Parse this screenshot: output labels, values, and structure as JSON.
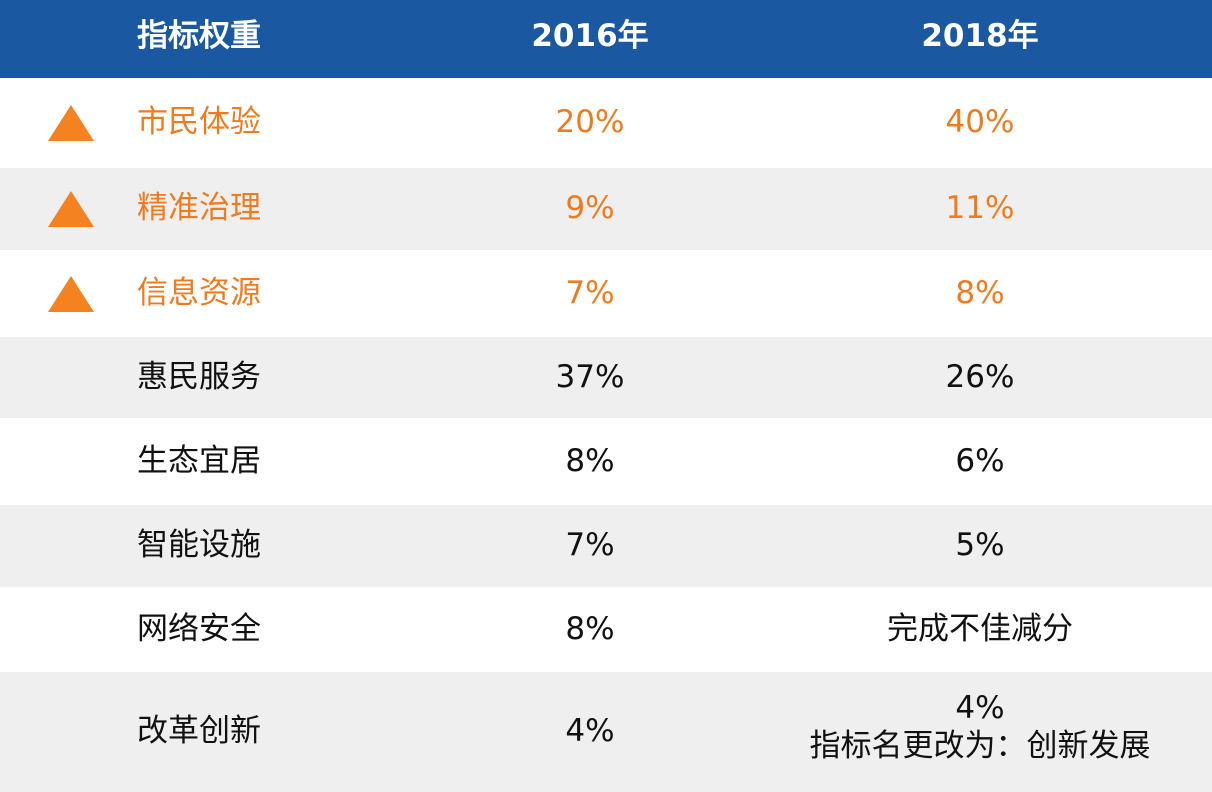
{
  "table": {
    "header": [
      "指标权重",
      "2016年",
      "2018年"
    ],
    "rows": [
      {
        "cells": [
          "市民体验",
          "20%",
          "40%"
        ],
        "highlight": true
      },
      {
        "cells": [
          "精准治理",
          "9%",
          "11%"
        ],
        "highlight": true
      },
      {
        "cells": [
          "信息资源",
          "7%",
          "8%"
        ],
        "highlight": true
      },
      {
        "cells": [
          "惠民服务",
          "37%",
          "26%"
        ],
        "highlight": false
      },
      {
        "cells": [
          "生态宜居",
          "8%",
          "6%"
        ],
        "highlight": false
      },
      {
        "cells": [
          "智能设施",
          "7%",
          "5%"
        ],
        "highlight": false
      },
      {
        "cells": [
          "网络安全",
          "8%",
          "完成不佳减分"
        ],
        "highlight": false
      },
      {
        "cells": [
          "改革创新",
          "4%",
          "4%"
        ],
        "note": "指标名更改为：创新发展",
        "highlight": false
      }
    ]
  }
}
